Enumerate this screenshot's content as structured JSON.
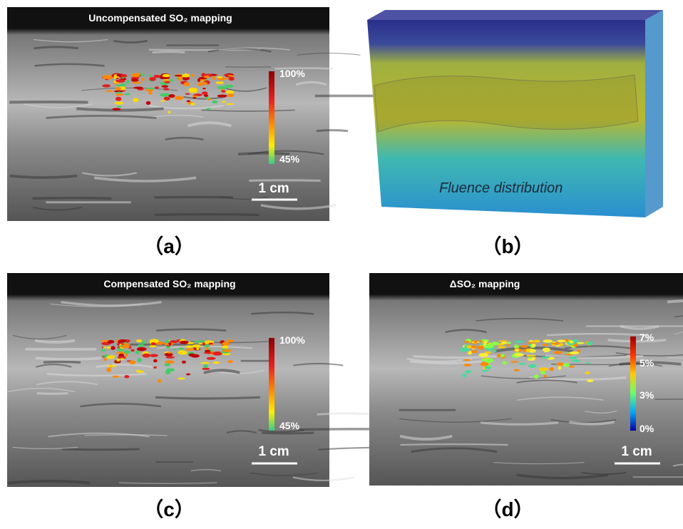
{
  "panels": [
    {
      "title": "Uncompensated SO₂ mapping",
      "colorbar": [
        "100%",
        "45%"
      ],
      "scale_bar": "1 cm",
      "caption": "（a）"
    },
    {
      "annotation": "Fluence distribution",
      "caption": "（b）"
    },
    {
      "title": "Compensated SO₂ mapping",
      "colorbar": [
        "100%",
        "45%"
      ],
      "scale_bar": "1 cm",
      "caption": "（c）"
    },
    {
      "title": "ΔSO₂ mapping",
      "colorbar": [
        "7%",
        "5%",
        "3%",
        "0%"
      ],
      "scale_bar": "1 cm",
      "caption": "（d）"
    }
  ]
}
